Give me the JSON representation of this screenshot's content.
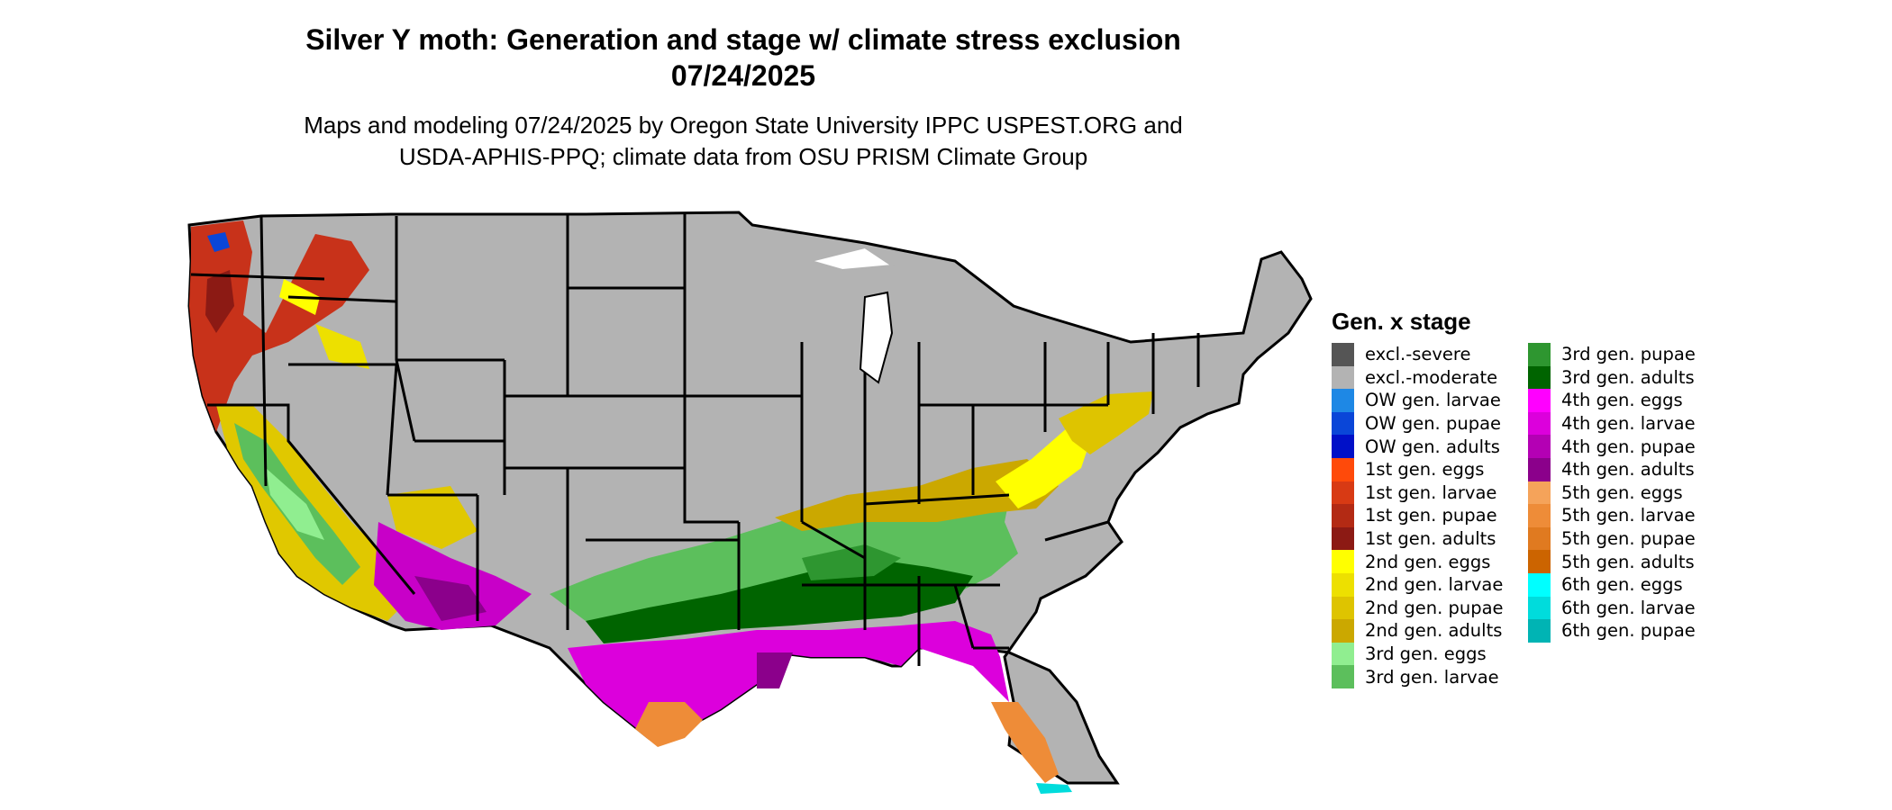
{
  "title_line1": "Silver Y moth: Generation and stage w/ climate stress exclusion",
  "title_line2": "07/24/2025",
  "subtitle_line1": "Maps and modeling 07/24/2025 by Oregon State University IPPC USPEST.ORG and",
  "subtitle_line2": "USDA-APHIS-PPQ; climate data from OSU PRISM Climate Group",
  "legend": {
    "title": "Gen. x stage",
    "items": [
      {
        "label": "excl.-severe",
        "color": "#555555"
      },
      {
        "label": "excl.-moderate",
        "color": "#b3b3b3"
      },
      {
        "label": "OW gen. larvae",
        "color": "#1e88e5"
      },
      {
        "label": "OW gen. pupae",
        "color": "#0a46d8"
      },
      {
        "label": "OW gen. adults",
        "color": "#0010c8"
      },
      {
        "label": "1st gen. eggs",
        "color": "#ff4a0a"
      },
      {
        "label": "1st gen. larvae",
        "color": "#d83a14"
      },
      {
        "label": "1st gen. pupae",
        "color": "#b32a14"
      },
      {
        "label": "1st gen. adults",
        "color": "#8c1a14"
      },
      {
        "label": "2nd gen. eggs",
        "color": "#ffff00"
      },
      {
        "label": "2nd gen. larvae",
        "color": "#ede000"
      },
      {
        "label": "2nd gen. pupae",
        "color": "#dec400"
      },
      {
        "label": "2nd gen. adults",
        "color": "#cba800"
      },
      {
        "label": "3rd gen. eggs",
        "color": "#90ee90"
      },
      {
        "label": "3rd gen. larvae",
        "color": "#5cbf5c"
      },
      {
        "label": "3rd gen. pupae",
        "color": "#2e9630"
      },
      {
        "label": "3rd gen. adults",
        "color": "#006400"
      },
      {
        "label": "4th gen. eggs",
        "color": "#ff00ff"
      },
      {
        "label": "4th gen. larvae",
        "color": "#dc00dc"
      },
      {
        "label": "4th gen. pupae",
        "color": "#b400b4"
      },
      {
        "label": "4th gen. adults",
        "color": "#8b008b"
      },
      {
        "label": "5th gen. eggs",
        "color": "#f5a35a"
      },
      {
        "label": "5th gen. larvae",
        "color": "#ee8c38"
      },
      {
        "label": "5th gen. pupae",
        "color": "#e07a20"
      },
      {
        "label": "5th gen. adults",
        "color": "#cc6400"
      },
      {
        "label": "6th gen. eggs",
        "color": "#00ffff"
      },
      {
        "label": "6th gen. larvae",
        "color": "#00dcdc"
      },
      {
        "label": "6th gen. pupae",
        "color": "#00b4b4"
      }
    ]
  }
}
